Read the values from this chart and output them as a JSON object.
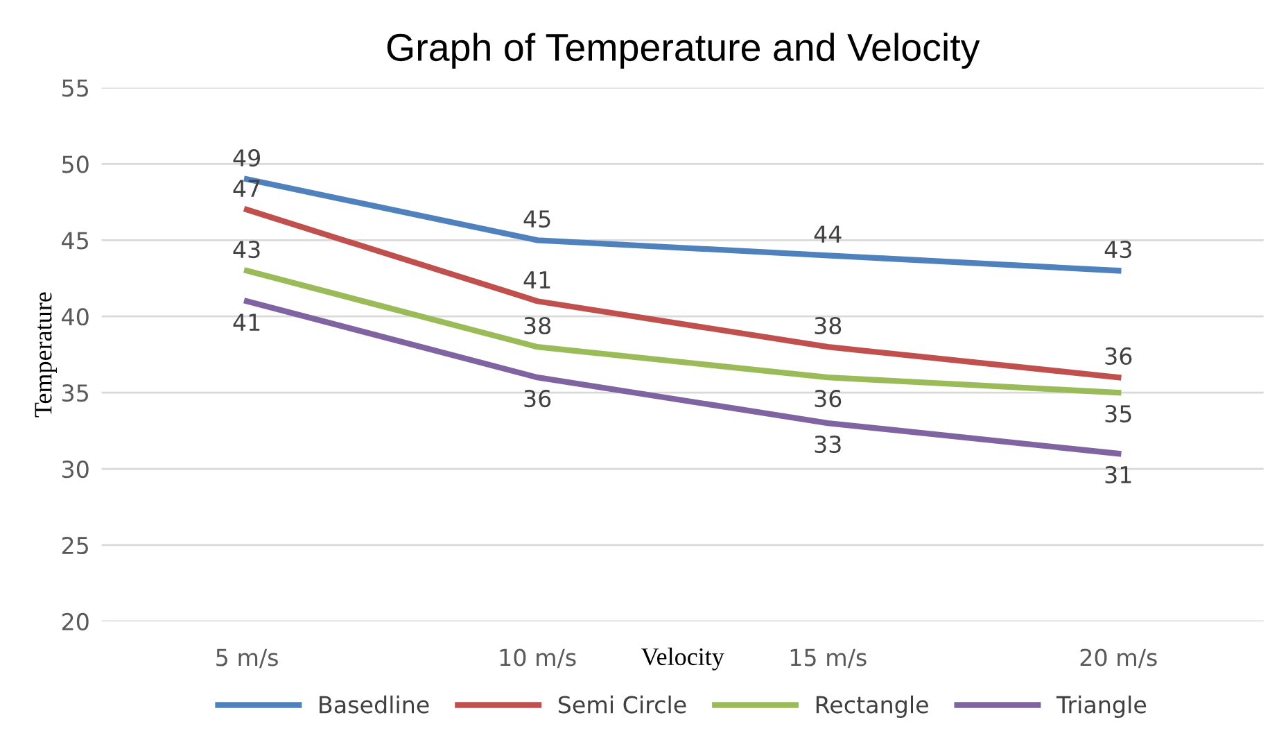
{
  "chart_data": {
    "type": "line",
    "title": "Graph of Temperature and Velocity",
    "xlabel": "Velocity",
    "ylabel": "Temperature",
    "categories": [
      "5 m/s",
      "10 m/s",
      "15 m/s",
      "20 m/s"
    ],
    "series": [
      {
        "name": "Basedline",
        "color": "#4f81bd",
        "values": [
          49,
          45,
          44,
          43
        ]
      },
      {
        "name": "Semi Circle",
        "color": "#c0504d",
        "values": [
          47,
          41,
          38,
          36
        ]
      },
      {
        "name": "Rectangle",
        "color": "#9bbb59",
        "values": [
          43,
          38,
          36,
          35
        ]
      },
      {
        "name": "Triangle",
        "color": "#8064a2",
        "values": [
          41,
          36,
          33,
          31
        ]
      }
    ],
    "ylim": [
      20,
      55
    ],
    "yticks": [
      20,
      25,
      30,
      35,
      40,
      45,
      50,
      55
    ],
    "grid": "y",
    "legend": "bottom",
    "data_labels": true,
    "marker": "none",
    "line_style": "solid"
  }
}
